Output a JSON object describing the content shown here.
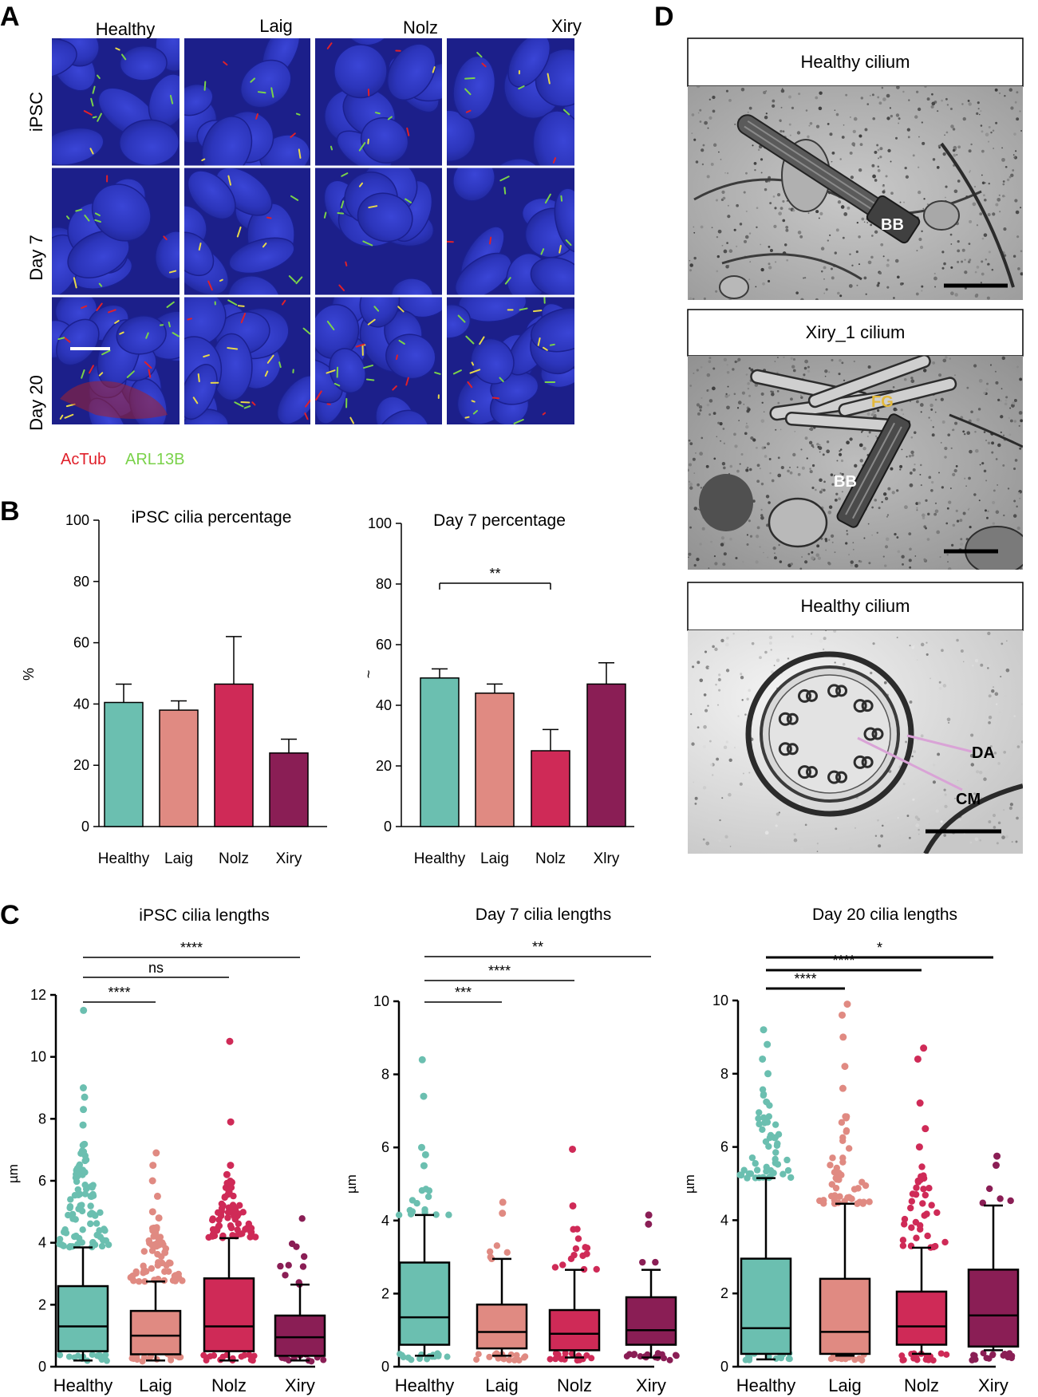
{
  "panel_letters": {
    "a": "A",
    "b": "B",
    "c": "C",
    "d": "D"
  },
  "panel_a": {
    "columns": [
      "Healthy",
      "Laig",
      "Nolz",
      "Xiry"
    ],
    "rows": [
      "iPSC",
      "Day 7",
      "Day 20"
    ],
    "stain_red": "AcTub",
    "stain_green": "ARL13B",
    "colors": {
      "background": "#1c1f8a",
      "nuclei": "#2e37c2",
      "red": "#e0202a",
      "green": "#7ad24a"
    }
  },
  "panel_d": {
    "tem1": {
      "title": "Healthy cilium",
      "labels": [
        "BB"
      ]
    },
    "tem2": {
      "title": "Xiry_1 cilium",
      "labels": [
        "FG",
        "BB"
      ]
    },
    "tem3": {
      "title": "Healthy cilium",
      "labels": [
        "DA",
        "CM"
      ]
    },
    "label_colors": {
      "FG": "#e3b93c",
      "lines": "#d9a3d6"
    }
  },
  "group_colors": [
    "#6bbfb0",
    "#e08a82",
    "#cf2a57",
    "#8a1e55"
  ],
  "chart_data": [
    {
      "id": "b1",
      "type": "bar",
      "title": "iPSC cilia percentage",
      "ylabel": "%",
      "ylim": [
        0,
        100
      ],
      "yticks": [
        0,
        20,
        40,
        60,
        80,
        100
      ],
      "categories": [
        "Healthy",
        "Laig",
        "Nolz",
        "Xiry"
      ],
      "values": [
        40.5,
        38,
        46.5,
        24
      ],
      "errors": [
        6,
        3,
        15.5,
        4.5
      ],
      "significance": []
    },
    {
      "id": "b2",
      "type": "bar",
      "title": "Day 7 percentage",
      "ylabel": "~",
      "ylim": [
        0,
        100
      ],
      "yticks": [
        0,
        20,
        40,
        60,
        80,
        100
      ],
      "categories": [
        "Healthy",
        "Laig",
        "Nolz",
        "Xlry"
      ],
      "values": [
        49,
        44,
        25,
        47
      ],
      "errors": [
        3,
        3,
        7,
        7
      ],
      "significance": [
        {
          "from": 0,
          "to": 2,
          "label": "**"
        }
      ]
    },
    {
      "id": "c1",
      "type": "box",
      "title": "iPSC cilia lengths",
      "ylabel": "µm",
      "ylim": [
        0,
        12
      ],
      "yticks": [
        0,
        2,
        4,
        6,
        8,
        10,
        12
      ],
      "categories": [
        "Healthy",
        "Laig",
        "Nolz",
        "Xiry"
      ],
      "boxes": [
        {
          "whisker_low": 0.2,
          "q1": 0.5,
          "median": 1.3,
          "q3": 2.6,
          "whisker_high": 3.85,
          "outlier_range": [
            3.85,
            7.2
          ],
          "outlier_density": 90,
          "low_dots": true,
          "extra_outliers": [
            7.8,
            8.3,
            8.7,
            9.0,
            11.5
          ]
        },
        {
          "whisker_low": 0.2,
          "q1": 0.4,
          "median": 1.0,
          "q3": 1.8,
          "whisker_high": 2.75,
          "outlier_range": [
            2.75,
            4.5
          ],
          "outlier_density": 60,
          "low_dots": true,
          "extra_outliers": [
            4.8,
            5.0,
            5.5,
            6.0,
            6.5,
            6.9
          ]
        },
        {
          "whisker_low": 0.2,
          "q1": 0.5,
          "median": 1.3,
          "q3": 2.85,
          "whisker_high": 4.15,
          "outlier_range": [
            4.15,
            6.0
          ],
          "outlier_density": 70,
          "low_dots": true,
          "extra_outliers": [
            6.2,
            6.5,
            7.9,
            10.5
          ]
        },
        {
          "whisker_low": 0.2,
          "q1": 0.35,
          "median": 0.95,
          "q3": 1.65,
          "whisker_high": 2.65,
          "outlier_range": [
            2.65,
            4.9
          ],
          "outlier_density": 10,
          "low_dots": true,
          "extra_outliers": []
        }
      ],
      "significance": [
        {
          "from": 0,
          "to": 1,
          "label": "****",
          "y": 0
        },
        {
          "from": 0,
          "to": 2,
          "label": "ns",
          "y": 1
        },
        {
          "from": 0,
          "to": 3,
          "label": "****",
          "y": 2
        }
      ]
    },
    {
      "id": "c2",
      "type": "box",
      "title": "Day 7 cilia lengths",
      "ylabel": "µm",
      "ylim": [
        0,
        10
      ],
      "yticks": [
        0,
        2,
        4,
        6,
        8,
        10
      ],
      "categories": [
        "Healthy",
        "Laig",
        "Nolz",
        "Xiry"
      ],
      "boxes": [
        {
          "whisker_low": 0.3,
          "q1": 0.6,
          "median": 1.35,
          "q3": 2.85,
          "whisker_high": 4.15,
          "outlier_range": [
            4.15,
            5.0
          ],
          "outlier_density": 14,
          "low_dots": true,
          "extra_outliers": [
            5.5,
            5.8,
            6.0,
            7.4,
            8.4
          ]
        },
        {
          "whisker_low": 0.3,
          "q1": 0.5,
          "median": 0.95,
          "q3": 1.7,
          "whisker_high": 2.95,
          "outlier_range": [
            2.95,
            3.4
          ],
          "outlier_density": 5,
          "low_dots": true,
          "extra_outliers": [
            4.2,
            4.5
          ]
        },
        {
          "whisker_low": 0.25,
          "q1": 0.45,
          "median": 0.9,
          "q3": 1.55,
          "whisker_high": 2.65,
          "outlier_range": [
            2.65,
            3.8
          ],
          "outlier_density": 14,
          "low_dots": true,
          "extra_outliers": [
            4.4,
            5.95
          ]
        },
        {
          "whisker_low": 0.25,
          "q1": 0.6,
          "median": 1.0,
          "q3": 1.9,
          "whisker_high": 2.65,
          "outlier_range": [
            2.7,
            3.1
          ],
          "outlier_density": 2,
          "low_dots": true,
          "extra_outliers": [
            3.9,
            4.15
          ]
        }
      ],
      "significance": [
        {
          "from": 0,
          "to": 1,
          "label": "***",
          "y": 0
        },
        {
          "from": 0,
          "to": 2,
          "label": "****",
          "y": 1
        },
        {
          "from": 0,
          "to": 3,
          "label": "**",
          "y": 2
        }
      ]
    },
    {
      "id": "c3",
      "type": "box",
      "title": "Day 20 cilia lengths",
      "ylabel": "µm",
      "ylim": [
        0,
        10
      ],
      "yticks": [
        0,
        2,
        4,
        6,
        8,
        10
      ],
      "categories": [
        "Healthy",
        "Laig",
        "Nolz",
        "Xiry"
      ],
      "boxes": [
        {
          "whisker_low": 0.2,
          "q1": 0.35,
          "median": 1.05,
          "q3": 2.95,
          "whisker_high": 5.15,
          "outlier_range": [
            5.15,
            7.6
          ],
          "outlier_density": 50,
          "low_dots": true,
          "extra_outliers": [
            8.0,
            8.4,
            8.8,
            9.2
          ]
        },
        {
          "whisker_low": 0.3,
          "q1": 0.35,
          "median": 0.95,
          "q3": 2.4,
          "whisker_high": 4.45,
          "outlier_range": [
            4.45,
            7.0
          ],
          "outlier_density": 45,
          "low_dots": true,
          "extra_outliers": [
            7.6,
            8.2,
            9.0,
            9.6,
            9.9
          ]
        },
        {
          "whisker_low": 0.35,
          "q1": 0.6,
          "median": 1.1,
          "q3": 2.05,
          "whisker_high": 3.25,
          "outlier_range": [
            3.25,
            5.5
          ],
          "outlier_density": 35,
          "low_dots": true,
          "extra_outliers": [
            6.0,
            6.5,
            7.2,
            8.4,
            8.7
          ]
        },
        {
          "whisker_low": 0.45,
          "q1": 0.55,
          "median": 1.4,
          "q3": 2.65,
          "whisker_high": 4.4,
          "outlier_range": [
            4.4,
            5.0
          ],
          "outlier_density": 4,
          "low_dots": true,
          "extra_outliers": [
            5.5,
            5.75
          ]
        }
      ],
      "significance": [
        {
          "from": 0,
          "to": 1,
          "label": "****",
          "y": 0
        },
        {
          "from": 0,
          "to": 2,
          "label": "****",
          "y": 1
        },
        {
          "from": 0,
          "to": 3,
          "label": "*",
          "y": 2
        }
      ]
    }
  ]
}
